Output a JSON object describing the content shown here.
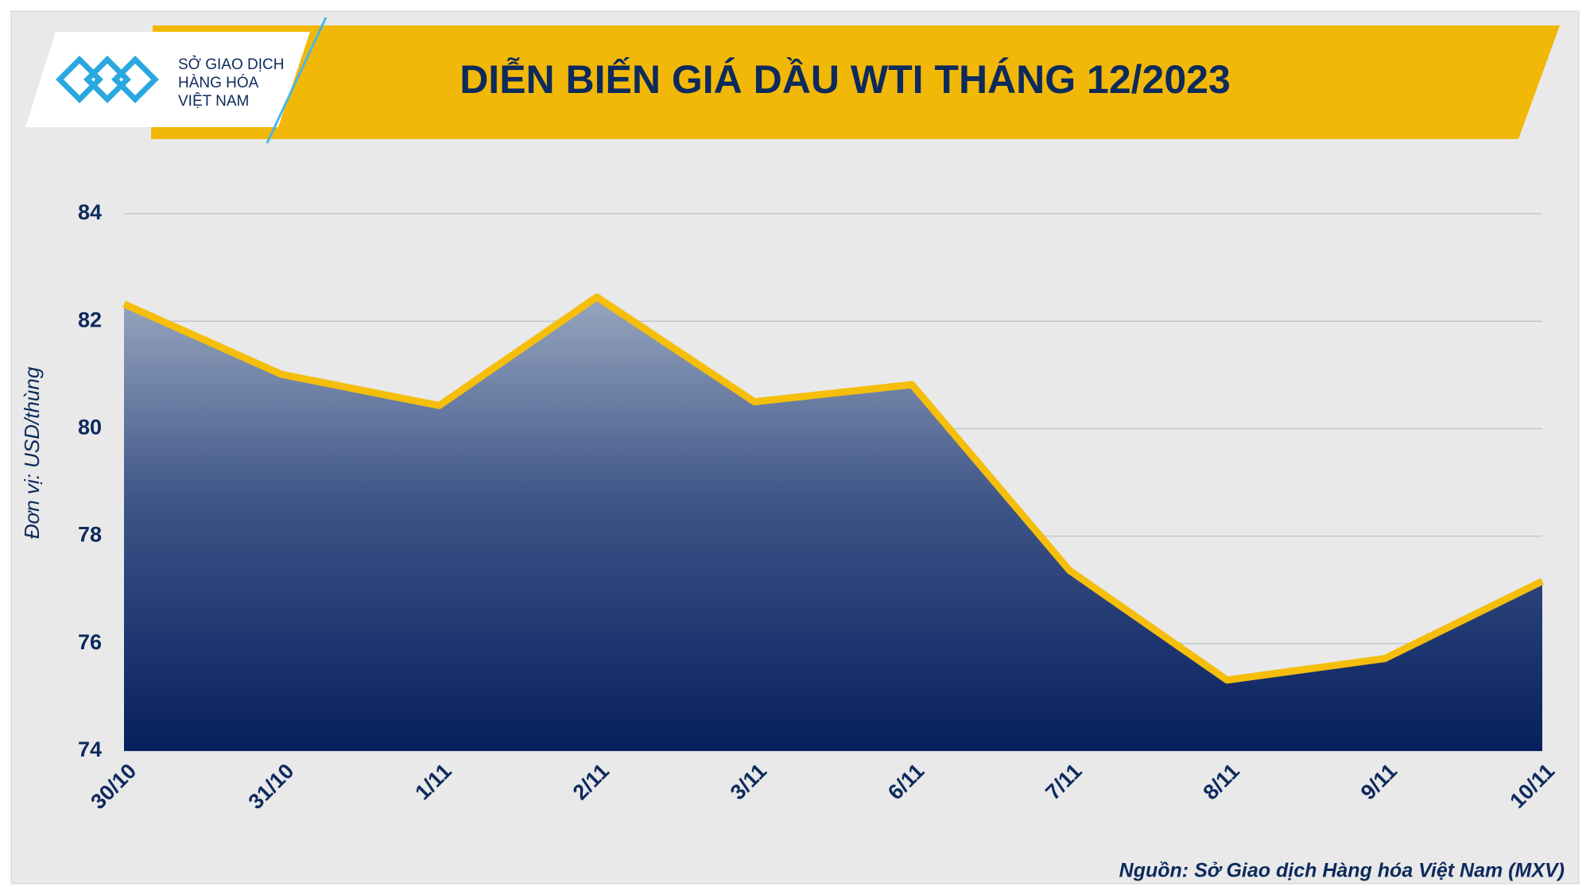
{
  "logo": {
    "lines": [
      "SỞ GIAO DỊCH",
      "HÀNG HÓA",
      "VIỆT NAM"
    ]
  },
  "chart_data": {
    "type": "area",
    "title": "DIỄN BIẾN GIÁ DẦU WTI THÁNG 12/2023",
    "y_label": "Đơn vị: USD/thùng",
    "source": "Nguồn: Sở Giao dịch Hàng hóa Việt Nam (MXV)",
    "categories": [
      "30/10",
      "31/10",
      "1/11",
      "2/11",
      "3/11",
      "6/11",
      "7/11",
      "8/11",
      "9/11",
      "10/11"
    ],
    "values": [
      82.32,
      81.01,
      80.43,
      82.45,
      80.5,
      80.82,
      77.36,
      75.32,
      75.72,
      77.16
    ],
    "color": "#f5be0b",
    "ylim": [
      74,
      84
    ],
    "yticks": [
      74,
      76,
      78,
      80,
      82,
      84
    ],
    "grid": true
  }
}
